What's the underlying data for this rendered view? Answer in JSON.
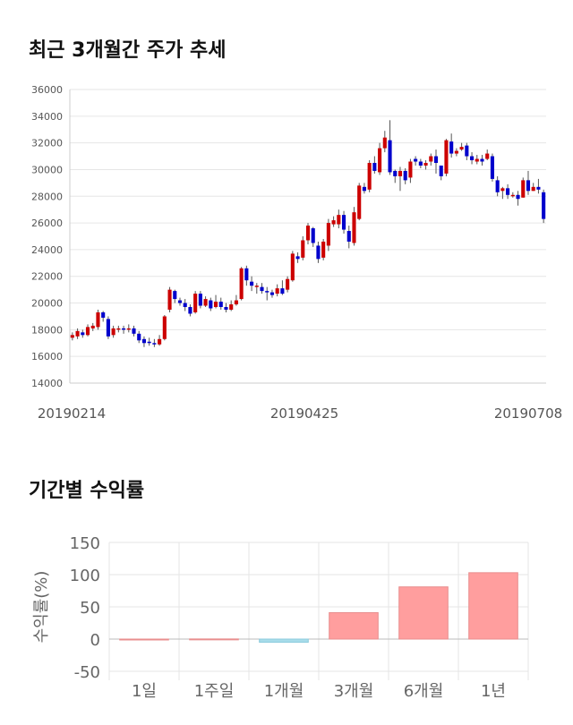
{
  "chart_title": "최근 3개월간 주가 추세",
  "returns_title": "기간별 수익률",
  "chart_data": [
    {
      "type": "candlestick",
      "ylim": [
        14000,
        36000
      ],
      "yticks": [
        "14000",
        "16000",
        "18000",
        "20000",
        "22000",
        "24000",
        "26000",
        "28000",
        "30000",
        "32000",
        "34000",
        "36000"
      ],
      "xtick_labels": [
        "20190214",
        "20190425",
        "20190708"
      ],
      "grid": true,
      "candles": [
        [
          17400,
          17600,
          17200,
          17800
        ],
        [
          17500,
          17900,
          17300,
          18100
        ],
        [
          17800,
          17600,
          17400,
          18000
        ],
        [
          17600,
          18200,
          17500,
          18400
        ],
        [
          18100,
          18300,
          17900,
          18500
        ],
        [
          18200,
          19300,
          18000,
          19500
        ],
        [
          19300,
          18900,
          18600,
          19400
        ],
        [
          18800,
          17500,
          17300,
          19000
        ],
        [
          17600,
          18100,
          17400,
          18300
        ],
        [
          18000,
          18100,
          17800,
          18300
        ],
        [
          18100,
          18000,
          17700,
          18300
        ],
        [
          18000,
          18100,
          17800,
          18400
        ],
        [
          18100,
          17700,
          17500,
          18300
        ],
        [
          17700,
          17200,
          17000,
          17900
        ],
        [
          17300,
          17000,
          16700,
          17500
        ],
        [
          17100,
          17000,
          16800,
          17400
        ],
        [
          17000,
          16900,
          16700,
          17300
        ],
        [
          16900,
          17300,
          16800,
          17600
        ],
        [
          17300,
          19000,
          17200,
          19100
        ],
        [
          19500,
          21000,
          19300,
          21200
        ],
        [
          20900,
          20300,
          20000,
          21000
        ],
        [
          20200,
          20000,
          19800,
          20400
        ],
        [
          20000,
          19700,
          19400,
          20300
        ],
        [
          19700,
          19200,
          19000,
          19900
        ],
        [
          19300,
          20700,
          19200,
          20900
        ],
        [
          20700,
          19800,
          19600,
          20900
        ],
        [
          19800,
          20300,
          19700,
          20500
        ],
        [
          20200,
          19600,
          19400,
          20400
        ],
        [
          19700,
          20100,
          19600,
          20600
        ],
        [
          20100,
          19700,
          19500,
          20400
        ],
        [
          19700,
          19500,
          19300,
          20000
        ],
        [
          19500,
          19900,
          19400,
          20200
        ],
        [
          19900,
          20200,
          19800,
          20600
        ],
        [
          20300,
          22600,
          20200,
          22700
        ],
        [
          22600,
          21700,
          21300,
          22800
        ],
        [
          21600,
          21300,
          20900,
          22000
        ],
        [
          21300,
          21300,
          20700,
          21500
        ],
        [
          21200,
          20900,
          20700,
          21500
        ],
        [
          20900,
          20800,
          20200,
          21200
        ],
        [
          20800,
          20600,
          20400,
          21000
        ],
        [
          20700,
          21100,
          20500,
          21400
        ],
        [
          21100,
          20700,
          20600,
          21700
        ],
        [
          21000,
          21800,
          20800,
          22000
        ],
        [
          21700,
          23700,
          21600,
          23900
        ],
        [
          23500,
          23300,
          23000,
          23800
        ],
        [
          23400,
          24700,
          23200,
          25000
        ],
        [
          24700,
          25800,
          24400,
          26000
        ],
        [
          25600,
          24500,
          24200,
          25700
        ],
        [
          24300,
          23300,
          23000,
          24600
        ],
        [
          23400,
          24600,
          23200,
          24800
        ],
        [
          24300,
          26000,
          23900,
          26300
        ],
        [
          25900,
          26200,
          25700,
          26500
        ],
        [
          25900,
          26600,
          25600,
          27000
        ],
        [
          26600,
          25500,
          25200,
          26900
        ],
        [
          25400,
          24600,
          24100,
          25800
        ],
        [
          24500,
          26800,
          24300,
          27200
        ],
        [
          26300,
          28800,
          26200,
          29000
        ],
        [
          28700,
          28400,
          28200,
          29000
        ],
        [
          28500,
          30500,
          28300,
          30700
        ],
        [
          30500,
          29900,
          29700,
          31000
        ],
        [
          29800,
          31600,
          29600,
          32000
        ],
        [
          31600,
          32400,
          31300,
          32900
        ],
        [
          32200,
          29800,
          29600,
          33700
        ],
        [
          29900,
          29500,
          29000,
          30000
        ],
        [
          29500,
          29900,
          28400,
          30200
        ],
        [
          29900,
          29200,
          28900,
          30100
        ],
        [
          29400,
          30600,
          29000,
          30800
        ],
        [
          30800,
          30600,
          30300,
          31000
        ],
        [
          30600,
          30300,
          30100,
          30800
        ],
        [
          30300,
          30500,
          30000,
          30700
        ],
        [
          30600,
          31000,
          30300,
          31200
        ],
        [
          31000,
          30500,
          29700,
          31500
        ],
        [
          30300,
          29500,
          29200,
          30300
        ],
        [
          29700,
          32200,
          29500,
          32300
        ],
        [
          32100,
          31200,
          30900,
          32700
        ],
        [
          31200,
          31400,
          31000,
          31600
        ],
        [
          31500,
          31700,
          31400,
          32000
        ],
        [
          31800,
          31000,
          30700,
          32000
        ],
        [
          31000,
          30700,
          30400,
          31300
        ],
        [
          30600,
          30800,
          30400,
          31100
        ],
        [
          30800,
          30600,
          30300,
          31100
        ],
        [
          30800,
          31200,
          30700,
          31500
        ],
        [
          31000,
          29300,
          29100,
          31200
        ],
        [
          29200,
          28300,
          28000,
          29500
        ],
        [
          28400,
          28600,
          27800,
          28700
        ],
        [
          28600,
          28100,
          27800,
          28900
        ],
        [
          28100,
          28100,
          27900,
          28300
        ],
        [
          28100,
          27800,
          27300,
          28400
        ],
        [
          27900,
          29200,
          27900,
          29400
        ],
        [
          29200,
          28400,
          28100,
          29900
        ],
        [
          28400,
          28700,
          28400,
          29000
        ],
        [
          28700,
          28500,
          28200,
          29300
        ],
        [
          28300,
          26300,
          26000,
          28500
        ]
      ]
    },
    {
      "type": "bar",
      "ylabel": "수익률(%)",
      "ylim": [
        -50,
        150
      ],
      "yticks": [
        "-50",
        "0",
        "50",
        "100",
        "150"
      ],
      "categories": [
        "1일",
        "1주일",
        "1개월",
        "3개월",
        "6개월",
        "1년"
      ],
      "values": [
        0,
        0.2,
        -5,
        41,
        81,
        103
      ],
      "colors": {
        "positive": "#ff9e9e",
        "negative": "#a8dcea"
      }
    }
  ],
  "colors": {
    "up": "#cc0000",
    "down": "#0000cc",
    "grid": "#e6e6e6"
  }
}
